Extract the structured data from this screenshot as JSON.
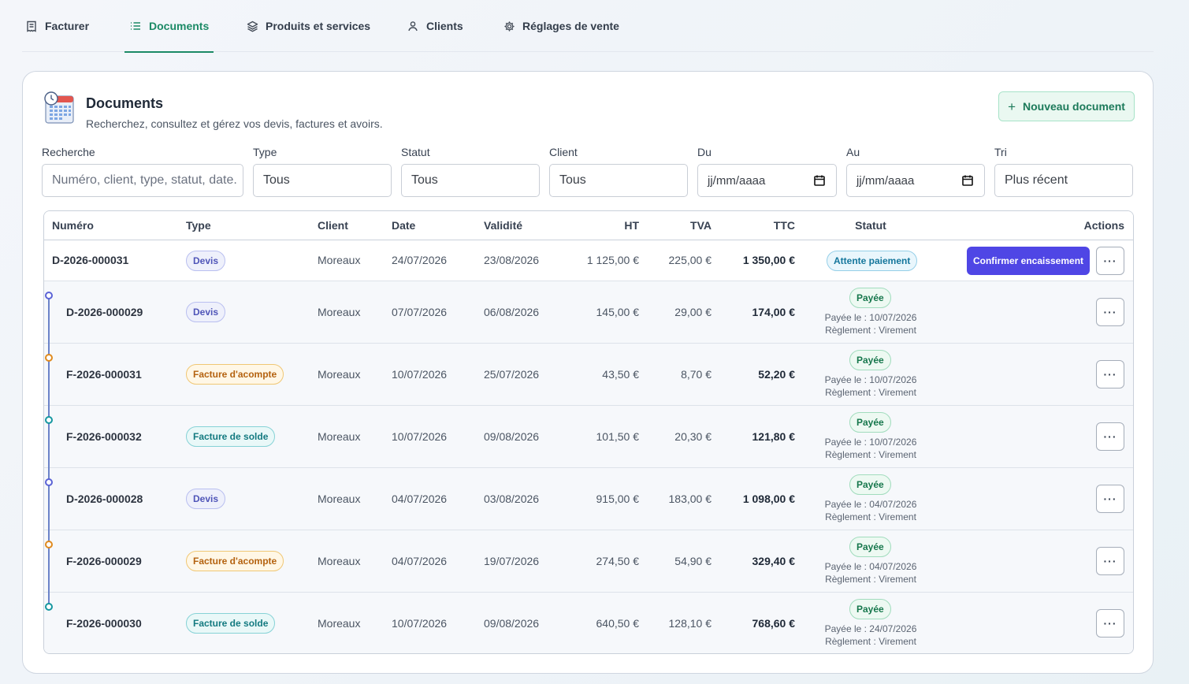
{
  "nav": {
    "tabs": [
      {
        "label": "Facturer",
        "icon": "receipt-icon"
      },
      {
        "label": "Documents",
        "icon": "list-icon"
      },
      {
        "label": "Produits et services",
        "icon": "layers-icon"
      },
      {
        "label": "Clients",
        "icon": "user-icon"
      },
      {
        "label": "Réglages de vente",
        "icon": "gear-icon"
      }
    ],
    "active": "Documents"
  },
  "header": {
    "title": "Documents",
    "subtitle": "Recherchez, consultez et gérez vos devis, factures et avoirs.",
    "new_button": "Nouveau document"
  },
  "filters": {
    "search": {
      "label": "Recherche",
      "placeholder": "Numéro, client, type, statut, date..."
    },
    "type": {
      "label": "Type",
      "value": "Tous"
    },
    "status": {
      "label": "Statut",
      "value": "Tous"
    },
    "client": {
      "label": "Client",
      "value": "Tous"
    },
    "from": {
      "label": "Du",
      "placeholder": "jj/mm/aaaa"
    },
    "to": {
      "label": "Au",
      "placeholder": "jj/mm/aaaa"
    },
    "sort": {
      "label": "Tri",
      "value": "Plus récent"
    }
  },
  "table": {
    "headers": {
      "numero": "Numéro",
      "type": "Type",
      "client": "Client",
      "date": "Date",
      "validite": "Validité",
      "ht": "HT",
      "tva": "TVA",
      "ttc": "TTC",
      "statut": "Statut",
      "actions": "Actions"
    },
    "rows": [
      {
        "numero": "D-2026-000031",
        "type": "Devis",
        "client": "Moreaux",
        "date": "24/07/2026",
        "validite": "23/08/2026",
        "ht": "1 125,00 €",
        "tva": "225,00 €",
        "ttc": "1 350,00 €",
        "statut": "Attente paiement",
        "action": "Confirmer encaissement",
        "more": "···"
      },
      {
        "numero": "D-2026-000029",
        "type": "Devis",
        "client": "Moreaux",
        "date": "07/07/2026",
        "validite": "06/08/2026",
        "ht": "145,00 €",
        "tva": "29,00 €",
        "ttc": "174,00 €",
        "statut": "Payée",
        "paid_on": "Payée le : 10/07/2026",
        "payment": "Règlement : Virement",
        "more": "···"
      },
      {
        "numero": "F-2026-000031",
        "type": "Facture d'acompte",
        "client": "Moreaux",
        "date": "10/07/2026",
        "validite": "25/07/2026",
        "ht": "43,50 €",
        "tva": "8,70 €",
        "ttc": "52,20 €",
        "statut": "Payée",
        "paid_on": "Payée le : 10/07/2026",
        "payment": "Règlement : Virement",
        "more": "···"
      },
      {
        "numero": "F-2026-000032",
        "type": "Facture de solde",
        "client": "Moreaux",
        "date": "10/07/2026",
        "validite": "09/08/2026",
        "ht": "101,50 €",
        "tva": "20,30 €",
        "ttc": "121,80 €",
        "statut": "Payée",
        "paid_on": "Payée le : 10/07/2026",
        "payment": "Règlement : Virement",
        "more": "···"
      },
      {
        "numero": "D-2026-000028",
        "type": "Devis",
        "client": "Moreaux",
        "date": "04/07/2026",
        "validite": "03/08/2026",
        "ht": "915,00 €",
        "tva": "183,00 €",
        "ttc": "1 098,00 €",
        "statut": "Payée",
        "paid_on": "Payée le : 04/07/2026",
        "payment": "Règlement : Virement",
        "more": "···"
      },
      {
        "numero": "F-2026-000029",
        "type": "Facture d'acompte",
        "client": "Moreaux",
        "date": "04/07/2026",
        "validite": "19/07/2026",
        "ht": "274,50 €",
        "tva": "54,90 €",
        "ttc": "329,40 €",
        "statut": "Payée",
        "paid_on": "Payée le : 04/07/2026",
        "payment": "Règlement : Virement",
        "more": "···"
      },
      {
        "numero": "F-2026-000030",
        "type": "Facture de solde",
        "client": "Moreaux",
        "date": "10/07/2026",
        "validite": "09/08/2026",
        "ht": "640,50 €",
        "tva": "128,10 €",
        "ttc": "768,60 €",
        "statut": "Payée",
        "paid_on": "Payée le : 24/07/2026",
        "payment": "Règlement : Virement",
        "more": "···"
      }
    ]
  },
  "colors": {
    "accent": "#1c8a66",
    "primary_button": "#4f46e5",
    "timeline_devis": "#5b63d6",
    "timeline_acompte": "#e08a1e",
    "timeline_solde": "#1597a0"
  }
}
